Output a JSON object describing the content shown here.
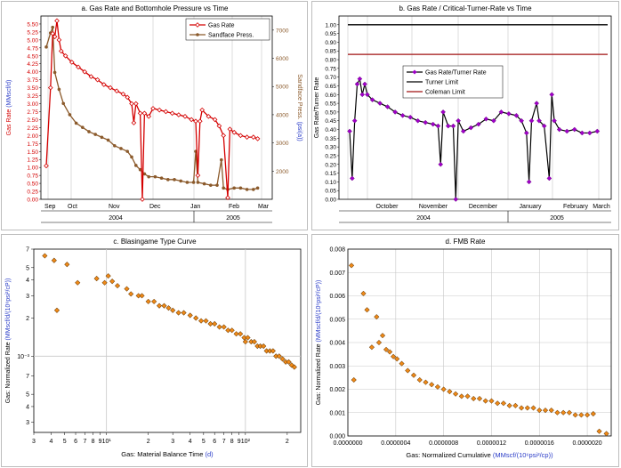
{
  "colors": {
    "red": "#d40000",
    "brown": "#8b5a2b",
    "purple": "#a000c8",
    "black": "#000000",
    "darkred": "#a01010",
    "orange": "#f08a18",
    "blue_label": "#2a3cc8",
    "grid": "#c8c8c8"
  },
  "chart_data": [
    {
      "id": "a",
      "type": "line",
      "title": "a. Gas Rate and Bottomhole Pressure vs Time",
      "ylabel_left": "Gas Rate",
      "ylabel_left_units": "(MMscf/d)",
      "ylabel_right": "Sandface Press.",
      "ylabel_right_units": "(psi(a))",
      "ylim_left": [
        0,
        5.75
      ],
      "ylim_right": [
        1000,
        7500
      ],
      "yticks_left": [
        "0.00",
        "0.25",
        "0.50",
        "0.75",
        "1.00",
        "1.25",
        "1.50",
        "1.75",
        "2.00",
        "2.25",
        "2.50",
        "2.75",
        "3.00",
        "3.25",
        "3.50",
        "3.75",
        "4.00",
        "4.25",
        "4.50",
        "4.75",
        "5.00",
        "5.25",
        "5.50"
      ],
      "yticks_right": [
        "2000",
        "3000",
        "4000",
        "5000",
        "6000",
        "7000"
      ],
      "month_labels": [
        "Sep",
        "Oct",
        "Nov",
        "Dec",
        "Jan",
        "Feb",
        "Mar"
      ],
      "year_labels": [
        "2004",
        "2005"
      ],
      "legend": [
        "Gas Rate",
        "Sandface Press."
      ],
      "series": [
        {
          "name": "Gas Rate",
          "points": [
            [
              0,
              1.05
            ],
            [
              4,
              3.5
            ],
            [
              6,
              5.2
            ],
            [
              8,
              5.1
            ],
            [
              10,
              5.6
            ],
            [
              12,
              5.0
            ],
            [
              14,
              4.65
            ],
            [
              18,
              4.5
            ],
            [
              24,
              4.3
            ],
            [
              30,
              4.15
            ],
            [
              36,
              4.0
            ],
            [
              42,
              3.85
            ],
            [
              48,
              3.75
            ],
            [
              54,
              3.6
            ],
            [
              60,
              3.5
            ],
            [
              66,
              3.4
            ],
            [
              72,
              3.3
            ],
            [
              76,
              3.2
            ],
            [
              80,
              3.0
            ],
            [
              82,
              2.4
            ],
            [
              84,
              3.0
            ],
            [
              88,
              2.7
            ],
            [
              90,
              0.0
            ],
            [
              92,
              2.7
            ],
            [
              96,
              2.6
            ],
            [
              100,
              2.85
            ],
            [
              106,
              2.8
            ],
            [
              112,
              2.75
            ],
            [
              118,
              2.7
            ],
            [
              124,
              2.65
            ],
            [
              130,
              2.6
            ],
            [
              136,
              2.5
            ],
            [
              140,
              2.45
            ],
            [
              142,
              0.75
            ],
            [
              144,
              2.45
            ],
            [
              146,
              2.8
            ],
            [
              152,
              2.6
            ],
            [
              158,
              2.5
            ],
            [
              162,
              2.3
            ],
            [
              166,
              2.0
            ],
            [
              170,
              0.05
            ],
            [
              172,
              2.2
            ],
            [
              176,
              2.1
            ],
            [
              182,
              2.0
            ],
            [
              188,
              1.95
            ],
            [
              194,
              1.95
            ],
            [
              198,
              1.9
            ]
          ]
        },
        {
          "name": "Sandface Press.",
          "points": [
            [
              0,
              6400
            ],
            [
              4,
              6900
            ],
            [
              6,
              7100
            ],
            [
              8,
              5500
            ],
            [
              12,
              4900
            ],
            [
              16,
              4400
            ],
            [
              22,
              4000
            ],
            [
              28,
              3700
            ],
            [
              34,
              3550
            ],
            [
              40,
              3400
            ],
            [
              46,
              3300
            ],
            [
              52,
              3200
            ],
            [
              58,
              3100
            ],
            [
              64,
              2900
            ],
            [
              70,
              2800
            ],
            [
              76,
              2700
            ],
            [
              80,
              2500
            ],
            [
              84,
              2200
            ],
            [
              88,
              2050
            ],
            [
              92,
              1900
            ],
            [
              96,
              1800
            ],
            [
              102,
              1800
            ],
            [
              108,
              1750
            ],
            [
              114,
              1700
            ],
            [
              120,
              1700
            ],
            [
              126,
              1650
            ],
            [
              132,
              1600
            ],
            [
              138,
              1600
            ],
            [
              140,
              2700
            ],
            [
              142,
              1600
            ],
            [
              148,
              1550
            ],
            [
              154,
              1500
            ],
            [
              160,
              1500
            ],
            [
              164,
              2400
            ],
            [
              166,
              1400
            ],
            [
              170,
              1350
            ],
            [
              176,
              1400
            ],
            [
              182,
              1400
            ],
            [
              188,
              1350
            ],
            [
              194,
              1350
            ],
            [
              198,
              1400
            ]
          ]
        }
      ]
    },
    {
      "id": "b",
      "type": "line",
      "title": "b. Gas Rate / Critical-Turner-Rate vs Time",
      "ylabel": "Gas Rate/Turner Rate",
      "ylim": [
        0,
        1.05
      ],
      "yticks": [
        "0.00",
        "0.05",
        "0.10",
        "0.15",
        "0.20",
        "0.25",
        "0.30",
        "0.35",
        "0.40",
        "0.45",
        "0.50",
        "0.55",
        "0.60",
        "0.65",
        "0.70",
        "0.75",
        "0.80",
        "0.85",
        "0.90",
        "0.95",
        "1.00"
      ],
      "month_labels": [
        "October",
        "November",
        "December",
        "January",
        "February",
        "March"
      ],
      "year_labels": [
        "2004",
        "2005"
      ],
      "legend": [
        "Gas Rate/Turner Rate",
        "Turner Limit",
        "Coleman Limit"
      ],
      "turner_limit": 1.0,
      "coleman_limit": 0.83,
      "series": [
        {
          "name": "Gas Rate/Turner Rate",
          "points": [
            [
              0,
              0.39
            ],
            [
              2,
              0.12
            ],
            [
              4,
              0.45
            ],
            [
              6,
              0.66
            ],
            [
              8,
              0.69
            ],
            [
              10,
              0.6
            ],
            [
              12,
              0.66
            ],
            [
              14,
              0.6
            ],
            [
              18,
              0.57
            ],
            [
              24,
              0.55
            ],
            [
              30,
              0.53
            ],
            [
              36,
              0.5
            ],
            [
              42,
              0.48
            ],
            [
              48,
              0.47
            ],
            [
              54,
              0.45
            ],
            [
              60,
              0.44
            ],
            [
              66,
              0.43
            ],
            [
              70,
              0.42
            ],
            [
              72,
              0.2
            ],
            [
              74,
              0.5
            ],
            [
              78,
              0.42
            ],
            [
              82,
              0.42
            ],
            [
              84,
              0.0
            ],
            [
              86,
              0.45
            ],
            [
              90,
              0.39
            ],
            [
              96,
              0.41
            ],
            [
              102,
              0.43
            ],
            [
              108,
              0.46
            ],
            [
              114,
              0.45
            ],
            [
              120,
              0.5
            ],
            [
              126,
              0.49
            ],
            [
              132,
              0.48
            ],
            [
              136,
              0.45
            ],
            [
              140,
              0.38
            ],
            [
              142,
              0.1
            ],
            [
              144,
              0.45
            ],
            [
              148,
              0.55
            ],
            [
              150,
              0.45
            ],
            [
              154,
              0.42
            ],
            [
              158,
              0.12
            ],
            [
              160,
              0.6
            ],
            [
              162,
              0.45
            ],
            [
              166,
              0.4
            ],
            [
              172,
              0.39
            ],
            [
              178,
              0.4
            ],
            [
              184,
              0.38
            ],
            [
              190,
              0.38
            ],
            [
              196,
              0.39
            ]
          ]
        }
      ]
    },
    {
      "id": "c",
      "type": "scatter",
      "title": "c. Blasingame Type Curve",
      "xlabel": "Gas: Material Balance Time",
      "xlabel_units": "(d)",
      "ylabel": "Gas: Normalized Rate",
      "ylabel_units": "(MMscf/d/(10⁶psi²/cP))",
      "xscale": "log",
      "yscale": "log",
      "xlim": [
        3,
        250
      ],
      "ylim": [
        0.00025,
        0.007
      ],
      "xtick_labels": [
        "3",
        "4",
        "5",
        "6",
        "7",
        "8",
        "9",
        "10¹",
        "2",
        "3",
        "4",
        "5",
        "6",
        "7",
        "8",
        "9",
        "10²",
        "2"
      ],
      "ytick_labels": [
        "7",
        "5",
        "4",
        "3",
        "2",
        "10⁻³",
        "7",
        "5",
        "4",
        "3"
      ],
      "points": [
        [
          3.6,
          0.0062
        ],
        [
          4.2,
          0.0057
        ],
        [
          4.4,
          0.0023
        ],
        [
          5.2,
          0.0053
        ],
        [
          6.2,
          0.0038
        ],
        [
          8.5,
          0.0041
        ],
        [
          9.7,
          0.0038
        ],
        [
          10.3,
          0.0043
        ],
        [
          11,
          0.0039
        ],
        [
          12,
          0.0036
        ],
        [
          14,
          0.0034
        ],
        [
          15,
          0.0031
        ],
        [
          17,
          0.003
        ],
        [
          18,
          0.003
        ],
        [
          20,
          0.0027
        ],
        [
          22,
          0.0027
        ],
        [
          24,
          0.0025
        ],
        [
          26,
          0.0025
        ],
        [
          28,
          0.0024
        ],
        [
          30,
          0.0023
        ],
        [
          33,
          0.0022
        ],
        [
          36,
          0.0022
        ],
        [
          40,
          0.0021
        ],
        [
          44,
          0.002
        ],
        [
          48,
          0.0019
        ],
        [
          52,
          0.0019
        ],
        [
          56,
          0.0018
        ],
        [
          60,
          0.0018
        ],
        [
          65,
          0.0017
        ],
        [
          70,
          0.0017
        ],
        [
          75,
          0.0016
        ],
        [
          80,
          0.0016
        ],
        [
          86,
          0.0015
        ],
        [
          92,
          0.0015
        ],
        [
          98,
          0.0014
        ],
        [
          100,
          0.0013
        ],
        [
          104,
          0.0014
        ],
        [
          110,
          0.0013
        ],
        [
          116,
          0.0013
        ],
        [
          122,
          0.0012
        ],
        [
          128,
          0.0012
        ],
        [
          135,
          0.0012
        ],
        [
          142,
          0.0011
        ],
        [
          150,
          0.0011
        ],
        [
          158,
          0.0011
        ],
        [
          166,
          0.001
        ],
        [
          175,
          0.001
        ],
        [
          185,
          0.00095
        ],
        [
          195,
          0.0009
        ],
        [
          205,
          0.0009
        ],
        [
          215,
          0.00085
        ],
        [
          225,
          0.00082
        ]
      ]
    },
    {
      "id": "d",
      "type": "scatter",
      "title": "d. FMB Rate",
      "xlabel": "Gas: Normalized Cumulative",
      "xlabel_units": "(MMscf/(10⁶psi²/cp))",
      "ylabel": "Gas: Normalized Rate",
      "ylabel_units": "(MMscf/d/(10⁶psi²/cP))",
      "xlim": [
        0,
        2.2e-06
      ],
      "ylim": [
        0,
        0.008
      ],
      "xtick_labels": [
        "0.0000000",
        "0.0000004",
        "0.0000008",
        "0.0000012",
        "0.0000016",
        "0.0000020"
      ],
      "ytick_labels": [
        "0.000",
        "0.001",
        "0.002",
        "0.003",
        "0.004",
        "0.005",
        "0.006",
        "0.007",
        "0.008"
      ],
      "points": [
        [
          3e-08,
          0.0073
        ],
        [
          5e-08,
          0.0024
        ],
        [
          1.3e-07,
          0.0061
        ],
        [
          1.6e-07,
          0.0054
        ],
        [
          2e-07,
          0.0038
        ],
        [
          2.4e-07,
          0.0051
        ],
        [
          2.6e-07,
          0.004
        ],
        [
          2.9e-07,
          0.0043
        ],
        [
          3.2e-07,
          0.0037
        ],
        [
          3.5e-07,
          0.0036
        ],
        [
          3.8e-07,
          0.0034
        ],
        [
          4.1e-07,
          0.0033
        ],
        [
          4.5e-07,
          0.0031
        ],
        [
          5e-07,
          0.0028
        ],
        [
          5.5e-07,
          0.0026
        ],
        [
          6e-07,
          0.0024
        ],
        [
          6.5e-07,
          0.0023
        ],
        [
          7e-07,
          0.0022
        ],
        [
          7.5e-07,
          0.0021
        ],
        [
          8e-07,
          0.002
        ],
        [
          8.5e-07,
          0.0019
        ],
        [
          9e-07,
          0.0018
        ],
        [
          9.5e-07,
          0.0017
        ],
        [
          1e-06,
          0.0017
        ],
        [
          1.05e-06,
          0.0016
        ],
        [
          1.1e-06,
          0.0016
        ],
        [
          1.15e-06,
          0.0015
        ],
        [
          1.2e-06,
          0.0015
        ],
        [
          1.25e-06,
          0.0014
        ],
        [
          1.3e-06,
          0.0014
        ],
        [
          1.35e-06,
          0.0013
        ],
        [
          1.4e-06,
          0.0013
        ],
        [
          1.45e-06,
          0.0012
        ],
        [
          1.5e-06,
          0.0012
        ],
        [
          1.55e-06,
          0.0012
        ],
        [
          1.6e-06,
          0.0011
        ],
        [
          1.65e-06,
          0.0011
        ],
        [
          1.7e-06,
          0.0011
        ],
        [
          1.75e-06,
          0.001
        ],
        [
          1.8e-06,
          0.001
        ],
        [
          1.85e-06,
          0.001
        ],
        [
          1.9e-06,
          0.0009
        ],
        [
          1.95e-06,
          0.0009
        ],
        [
          2e-06,
          0.0009
        ],
        [
          2.05e-06,
          0.00095
        ],
        [
          2.1e-06,
          0.0002
        ],
        [
          2.16e-06,
          0.0001
        ]
      ]
    }
  ]
}
